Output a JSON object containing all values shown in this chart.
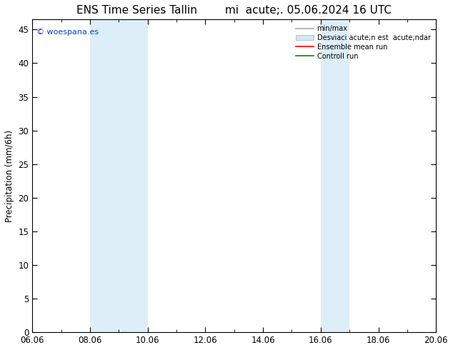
{
  "title_left": "ENS Time Series Tallin",
  "title_right": "mi  acute;. 05.06.2024 16 UTC",
  "ylabel": "Precipitation (mm/6h)",
  "watermark": "© woespana.es",
  "background_color": "#ffffff",
  "plot_bg_color": "#ffffff",
  "shaded_regions": [
    {
      "xmin": 8.06,
      "xmax": 10.06,
      "color": "#ddeef8"
    },
    {
      "xmin": 16.06,
      "xmax": 17.06,
      "color": "#ddeef8"
    }
  ],
  "xlim": [
    6.06,
    20.06
  ],
  "ylim": [
    0,
    46.5
  ],
  "xticks": [
    6.06,
    8.06,
    10.06,
    12.06,
    14.06,
    16.06,
    18.06,
    20.06
  ],
  "xtick_labels": [
    "06.06",
    "08.06",
    "10.06",
    "12.06",
    "14.06",
    "16.06",
    "18.06",
    "20.06"
  ],
  "yticks": [
    0,
    5,
    10,
    15,
    20,
    25,
    30,
    35,
    40,
    45
  ],
  "legend_line1_label": "min/max",
  "legend_line1_color": "#aaaaaa",
  "legend_patch_label": "Desviaci acute;n est  acute;ndar",
  "legend_patch_color": "#d0e8f8",
  "legend_line2_label": "Ensemble mean run",
  "legend_line2_color": "#ff0000",
  "legend_line3_label": "Controll run",
  "legend_line3_color": "#008800",
  "tick_direction": "in",
  "font_size": 8.5,
  "title_font_size": 11,
  "watermark_color": "#0044cc",
  "watermark_size": 8
}
